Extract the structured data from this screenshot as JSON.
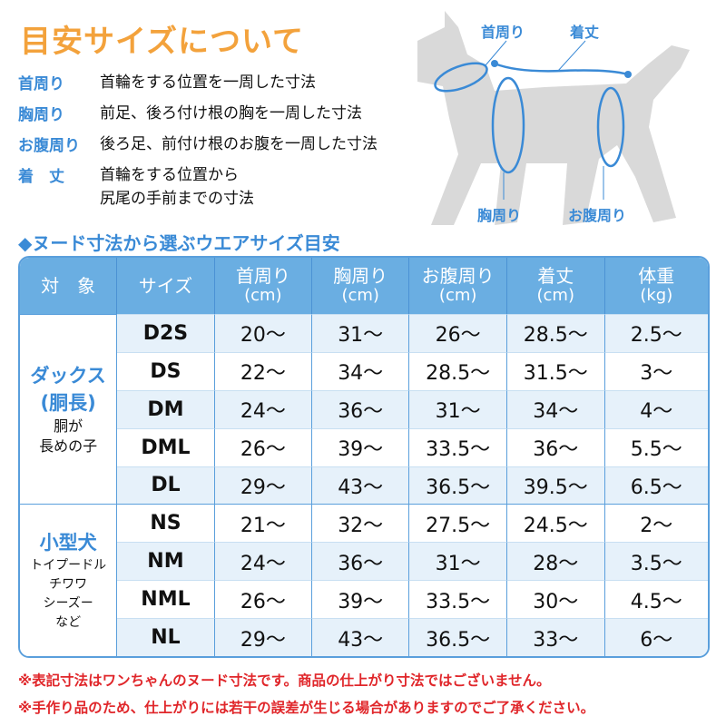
{
  "title": "目安サイズについて",
  "definitions": [
    {
      "term": "首周り",
      "desc": "首輪をする位置を一周した寸法"
    },
    {
      "term": "胸周り",
      "desc": "前足、後ろ付け根の胸を一周した寸法"
    },
    {
      "term": "お腹周り",
      "desc": "後ろ足、前付け根のお腹を一周した寸法"
    },
    {
      "term": "着　丈",
      "desc": "首輪をする位置から",
      "desc2": "尻尾の手前までの寸法"
    }
  ],
  "diagram": {
    "neck": "首周り",
    "length": "着丈",
    "chest": "胸周り",
    "belly": "お腹周り"
  },
  "colors": {
    "title": "#f3a23c",
    "accent": "#3a8ad6",
    "header": "#6aaee2",
    "note": "#e0262a"
  },
  "table_title": "◆ヌード寸法から選ぶウエアサイズ目安",
  "headers": [
    {
      "label": "対　象"
    },
    {
      "label": "サイズ"
    },
    {
      "label": "首周り",
      "unit": "(cm)"
    },
    {
      "label": "胸周り",
      "unit": "(cm)"
    },
    {
      "label": "お腹周り",
      "unit": "(cm)"
    },
    {
      "label": "着丈",
      "unit": "(cm)"
    },
    {
      "label": "体重",
      "unit": "(kg)"
    }
  ],
  "groups": [
    {
      "name1": "ダックス",
      "name2": "(胴長)",
      "note1": "胴が",
      "note2": "長めの子",
      "rows": [
        [
          "D2S",
          "20〜",
          "31〜",
          "26〜",
          "28.5〜",
          "2.5〜"
        ],
        [
          "DS",
          "22〜",
          "34〜",
          "28.5〜",
          "31.5〜",
          "3〜"
        ],
        [
          "DM",
          "24〜",
          "36〜",
          "31〜",
          "34〜",
          "4〜"
        ],
        [
          "DML",
          "26〜",
          "39〜",
          "33.5〜",
          "36〜",
          "5.5〜"
        ],
        [
          "DL",
          "29〜",
          "43〜",
          "36.5〜",
          "39.5〜",
          "6.5〜"
        ]
      ]
    },
    {
      "name1": "小型犬",
      "note1": "トイプードル",
      "note2": "チワワ",
      "note3": "シーズー",
      "note4": "など",
      "rows": [
        [
          "NS",
          "21〜",
          "32〜",
          "27.5〜",
          "24.5〜",
          "2〜"
        ],
        [
          "NM",
          "24〜",
          "36〜",
          "31〜",
          "28〜",
          "3.5〜"
        ],
        [
          "NML",
          "26〜",
          "39〜",
          "33.5〜",
          "30〜",
          "4.5〜"
        ],
        [
          "NL",
          "29〜",
          "43〜",
          "36.5〜",
          "33〜",
          "6〜"
        ]
      ]
    }
  ],
  "notes": [
    "※表記寸法はワンちゃんのヌード寸法です。商品の仕上がり寸法ではございません。",
    "※手作り品のため、仕上がりには若干の誤差が生じる場合がありますのでご了承ください。"
  ]
}
